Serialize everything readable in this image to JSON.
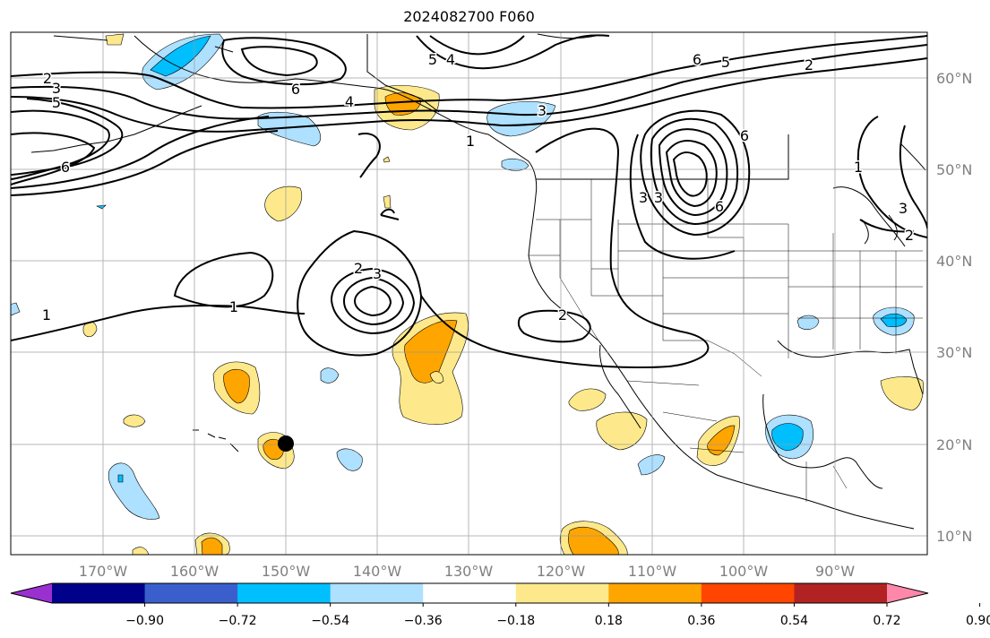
{
  "title": "2024082700 F060",
  "lon_ticks": [
    "170°W",
    "160°W",
    "150°W",
    "140°W",
    "130°W",
    "120°W",
    "110°W",
    "100°W",
    "90°W"
  ],
  "lat_ticks": [
    "60°N",
    "50°N",
    "40°N",
    "30°N",
    "20°N",
    "10°N"
  ],
  "colorbar": {
    "ticks": [
      "−0.90",
      "−0.72",
      "−0.54",
      "−0.36",
      "−0.18",
      "0.18",
      "0.36",
      "0.54",
      "0.72",
      "0.90"
    ],
    "colors": [
      "#9b30d0",
      "#00008b",
      "#3a5fcd",
      "#00bfff",
      "#aee0ff",
      "#ffffff",
      "#fde98b",
      "#ffa500",
      "#ff4500",
      "#b22222",
      "#ff88aa"
    ]
  },
  "marker": {
    "label": "black-dot"
  },
  "contour_labels": [
    "1",
    "1",
    "2",
    "3",
    "5",
    "6",
    "2",
    "3",
    "2",
    "3",
    "4",
    "5",
    "6",
    "5",
    "2",
    "6",
    "4",
    "3",
    "1",
    "1",
    "3",
    "3",
    "6",
    "6",
    "2"
  ]
}
